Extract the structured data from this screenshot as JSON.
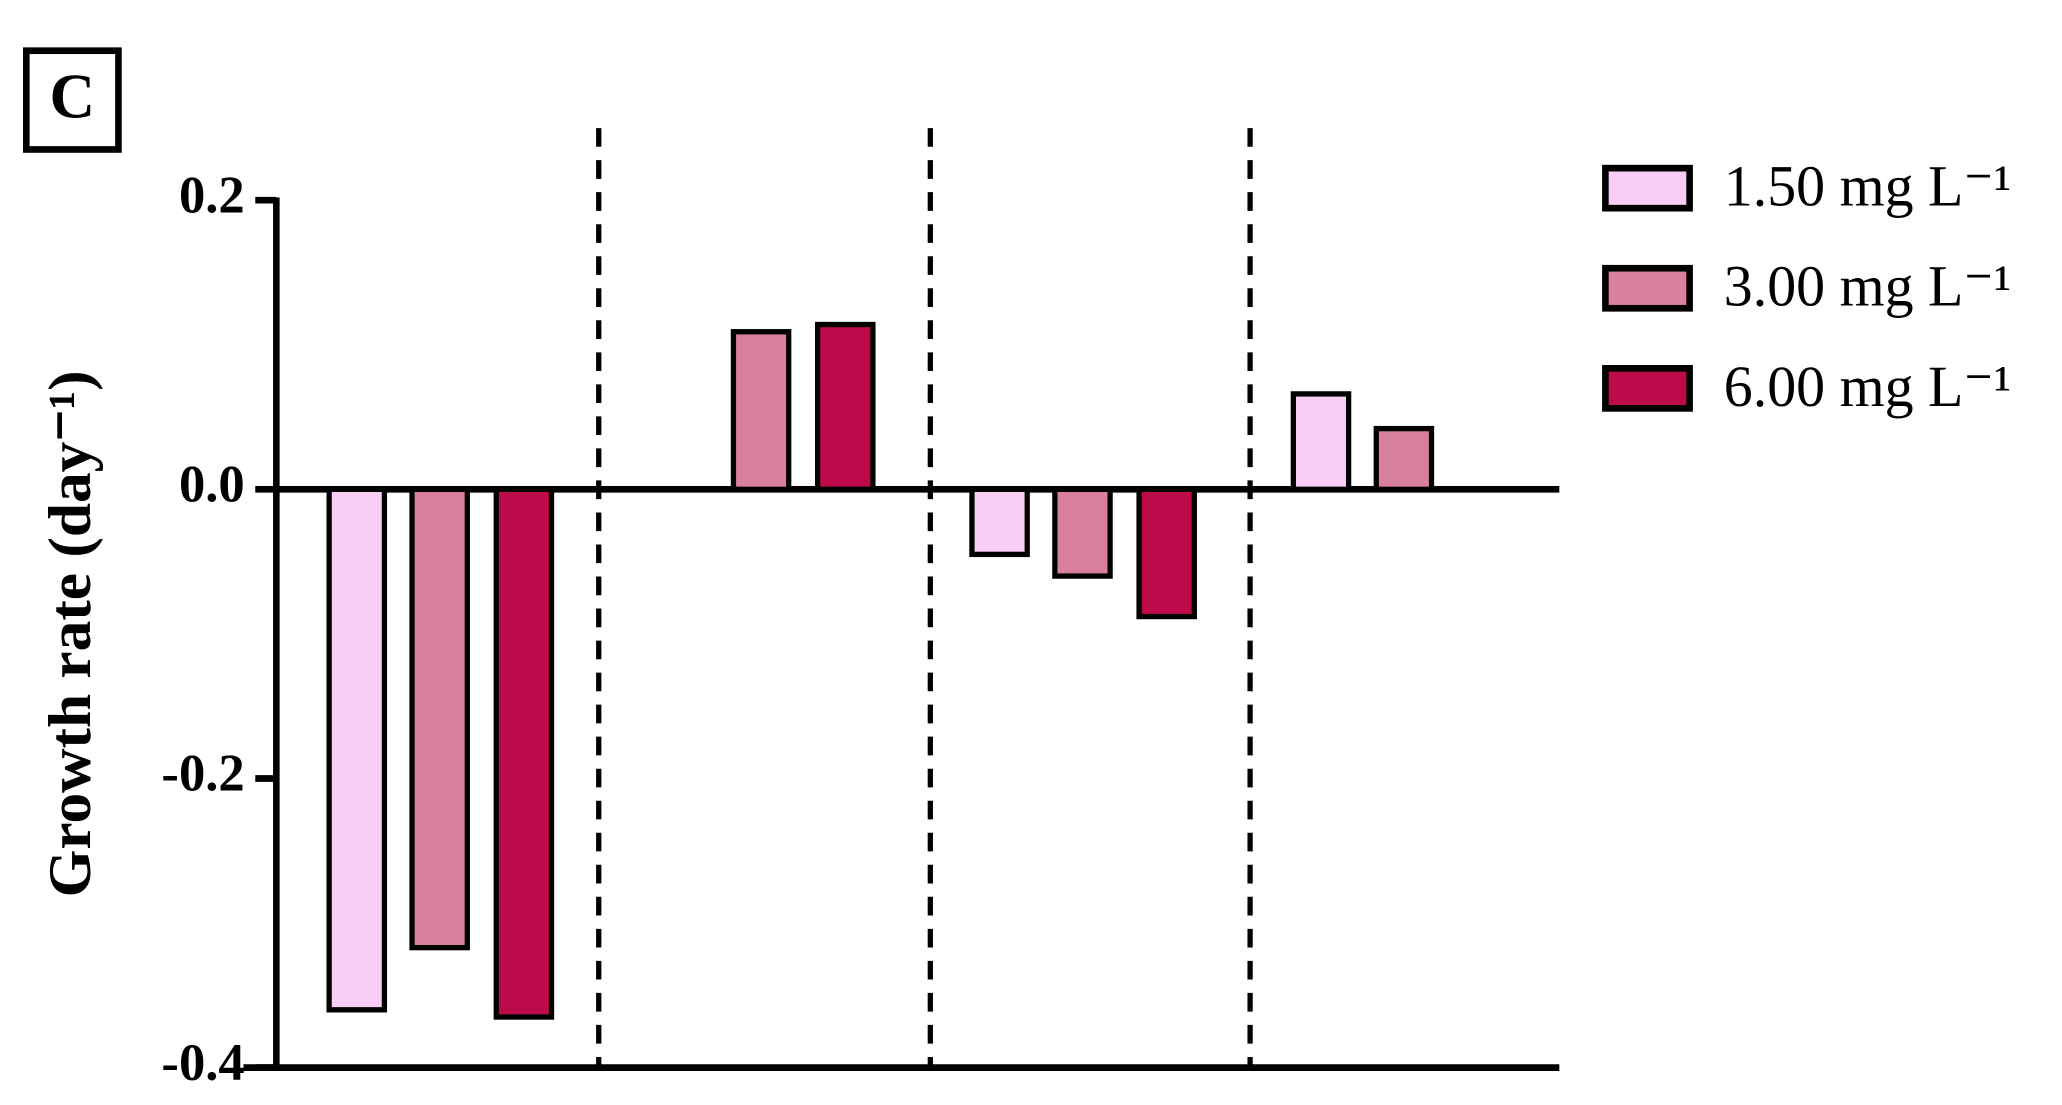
{
  "chart_data": {
    "type": "bar",
    "panel_label": "C",
    "y_label": "Growth rate (day⁻¹)",
    "categories": [
      null,
      null,
      null,
      null
    ],
    "series": [
      {
        "name": "1.50 mg L⁻¹",
        "color": "#f9cdf5",
        "values": [
          -0.36,
          0,
          -0.045,
          0.066
        ]
      },
      {
        "name": "3.00 mg L⁻¹",
        "color": "#d97fa0",
        "values": [
          -0.317,
          0.109,
          -0.06,
          0.042
        ]
      },
      {
        "name": "6.00 mg L⁻¹",
        "color": "#bc0a4a",
        "values": [
          -0.365,
          0.114,
          -0.088,
          0
        ]
      }
    ],
    "ylim": [
      -0.4,
      0.2
    ],
    "yticks": [
      -0.4,
      -0.2,
      {
        "value": 0,
        "label": "0.0"
      },
      0.2
    ]
  }
}
